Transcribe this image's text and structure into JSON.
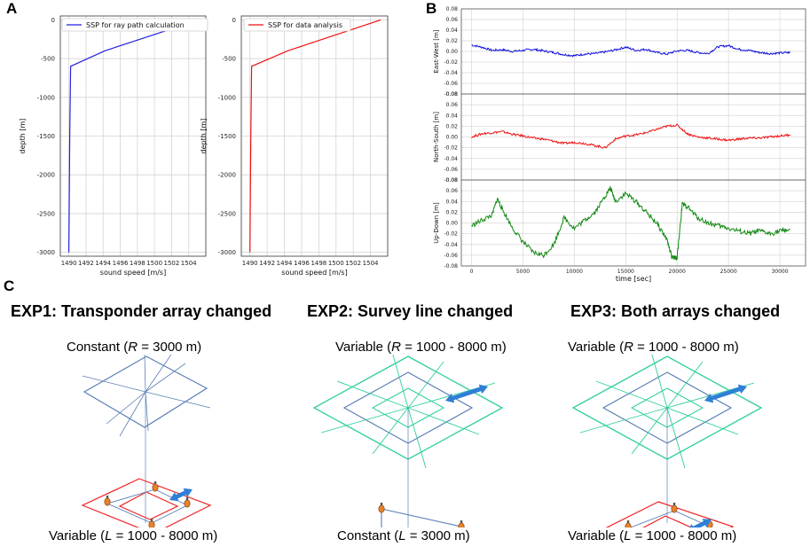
{
  "panels": {
    "a": "A",
    "b": "B",
    "c": "C"
  },
  "chart_data": [
    {
      "type": "line",
      "title": "",
      "legend": "SSP for ray path calculation",
      "legend_position": "top-right",
      "xlabel": "sound speed [m/s]",
      "ylabel": "depth [m]",
      "xlim": [
        1489,
        1506
      ],
      "ylim": [
        -3050,
        50
      ],
      "xticks": [
        1490,
        1492,
        1494,
        1496,
        1498,
        1500,
        1502,
        1504
      ],
      "yticks": [
        0,
        -500,
        -1000,
        -1500,
        -2000,
        -2500,
        -3000
      ],
      "grid": true,
      "color": "#2222dd",
      "x": [
        1505.2,
        1494.2,
        1490.2,
        1490.1,
        1490.0
      ],
      "y": [
        0,
        -400,
        -600,
        -1500,
        -3000
      ]
    },
    {
      "type": "line",
      "title": "",
      "legend": "SSP for data analysis",
      "legend_position": "top-left",
      "xlabel": "sound speed [m/s]",
      "ylabel": "depth [m]",
      "xlim": [
        1489,
        1506
      ],
      "ylim": [
        -3050,
        50
      ],
      "xticks": [
        1490,
        1492,
        1494,
        1496,
        1498,
        1500,
        1502,
        1504
      ],
      "yticks": [
        0,
        -500,
        -1000,
        -1500,
        -2000,
        -2500,
        -3000
      ],
      "grid": true,
      "color": "#ee1111",
      "x": [
        1505.2,
        1494.4,
        1490.2,
        1490.1,
        1490.0
      ],
      "y": [
        0,
        -400,
        -600,
        -1500,
        -3000
      ]
    },
    {
      "type": "line",
      "title": "",
      "xlabel": "",
      "ylabel": "East-West [m]",
      "xlim": [
        -1000,
        32500
      ],
      "ylim": [
        -0.08,
        0.08
      ],
      "yticks": [
        0.08,
        0.06,
        0.04,
        0.02,
        0.0,
        -0.02,
        -0.04,
        -0.06,
        -0.08
      ],
      "grid": true,
      "color": "#1111dd",
      "x": [
        0,
        1000,
        2000,
        3000,
        4000,
        5000,
        6000,
        7000,
        8000,
        9000,
        10000,
        11000,
        12000,
        13000,
        14000,
        15000,
        16000,
        17000,
        18000,
        19000,
        20000,
        21000,
        22000,
        23000,
        24000,
        25000,
        26000,
        27000,
        28000,
        29000,
        30000,
        31000
      ],
      "values": [
        0.012,
        0.008,
        0.002,
        0.003,
        0.0,
        0.002,
        0.004,
        0.001,
        -0.002,
        -0.006,
        -0.008,
        -0.005,
        -0.004,
        -0.001,
        0.003,
        0.008,
        0.002,
        0.004,
        -0.002,
        -0.005,
        0.001,
        0.002,
        -0.002,
        -0.004,
        0.009,
        0.011,
        0.004,
        0.002,
        -0.002,
        -0.004,
        -0.003,
        -0.002
      ]
    },
    {
      "type": "line",
      "title": "",
      "xlabel": "",
      "ylabel": "North-South [m]",
      "xlim": [
        -1000,
        32500
      ],
      "ylim": [
        -0.08,
        0.08
      ],
      "yticks": [
        0.08,
        0.06,
        0.04,
        0.02,
        0.0,
        -0.02,
        -0.04,
        -0.06,
        -0.08
      ],
      "grid": true,
      "color": "#ee1111",
      "x": [
        0,
        1000,
        2000,
        3000,
        4000,
        5000,
        6000,
        7000,
        8000,
        9000,
        10000,
        11000,
        12000,
        13000,
        14000,
        15000,
        16000,
        17000,
        18000,
        19000,
        20000,
        21000,
        22000,
        23000,
        24000,
        25000,
        26000,
        27000,
        28000,
        29000,
        30000,
        31000
      ],
      "values": [
        0.0,
        0.006,
        0.008,
        0.01,
        0.005,
        0.002,
        -0.002,
        -0.004,
        -0.008,
        -0.012,
        -0.01,
        -0.012,
        -0.016,
        -0.02,
        -0.004,
        0.002,
        0.004,
        0.008,
        0.014,
        0.02,
        0.022,
        0.006,
        0.0,
        -0.002,
        -0.004,
        -0.006,
        -0.004,
        -0.002,
        -0.002,
        0.0,
        0.002,
        0.004
      ]
    },
    {
      "type": "line",
      "title": "",
      "xlabel": "time [sec]",
      "ylabel": "Up-Down [m]",
      "xlim": [
        -1000,
        32500
      ],
      "ylim": [
        -0.08,
        0.08
      ],
      "xticks": [
        0,
        5000,
        10000,
        15000,
        20000,
        25000,
        30000
      ],
      "yticks": [
        0.08,
        0.06,
        0.04,
        0.02,
        0.0,
        -0.02,
        -0.04,
        -0.06,
        -0.08
      ],
      "grid": true,
      "color": "#118811",
      "x": [
        0,
        1000,
        2000,
        2500,
        3000,
        4000,
        5000,
        6000,
        7000,
        8000,
        9000,
        10000,
        11000,
        12000,
        13000,
        13500,
        14000,
        15000,
        16000,
        17000,
        18000,
        19000,
        19500,
        20000,
        20500,
        21000,
        22000,
        23000,
        24000,
        25000,
        26000,
        27000,
        28000,
        29000,
        30000,
        31000
      ],
      "values": [
        -0.005,
        0.005,
        0.015,
        0.045,
        0.025,
        -0.01,
        -0.035,
        -0.055,
        -0.06,
        -0.04,
        0.01,
        -0.01,
        0.005,
        0.02,
        0.05,
        0.065,
        0.04,
        0.055,
        0.04,
        0.02,
        0.0,
        -0.03,
        -0.065,
        -0.065,
        0.035,
        0.03,
        0.01,
        0.0,
        -0.005,
        -0.01,
        -0.015,
        -0.02,
        -0.015,
        -0.02,
        -0.015,
        -0.012
      ]
    }
  ],
  "experiments": [
    {
      "title": "EXP1: Transponder array changed",
      "top_prefix": "Constant (",
      "top_var": "R",
      "top_suffix": " = 3000 m)",
      "bottom_prefix": "Variable (",
      "bottom_var": "L",
      "bottom_suffix": " = 1000 - 8000 m)"
    },
    {
      "title": "EXP2: Survey line changed",
      "top_prefix": "Variable (",
      "top_var": "R",
      "top_suffix": " = 1000 - 8000 m)",
      "bottom_prefix": "Constant (",
      "bottom_var": "L",
      "bottom_suffix": " = 3000 m)"
    },
    {
      "title": "EXP3: Both arrays changed",
      "top_prefix": "Variable (",
      "top_var": "R",
      "top_suffix": " = 1000 - 8000 m)",
      "bottom_prefix": "Variable (",
      "bottom_var": "L",
      "bottom_suffix": " = 1000 - 8000 m)"
    }
  ],
  "colors": {
    "inner_square": "#5b7fb5",
    "outer_square": "#2dcf9a",
    "transponder_square": "#ee2222",
    "transponder": "#e8822a",
    "arrow": "#2f7fd6"
  }
}
